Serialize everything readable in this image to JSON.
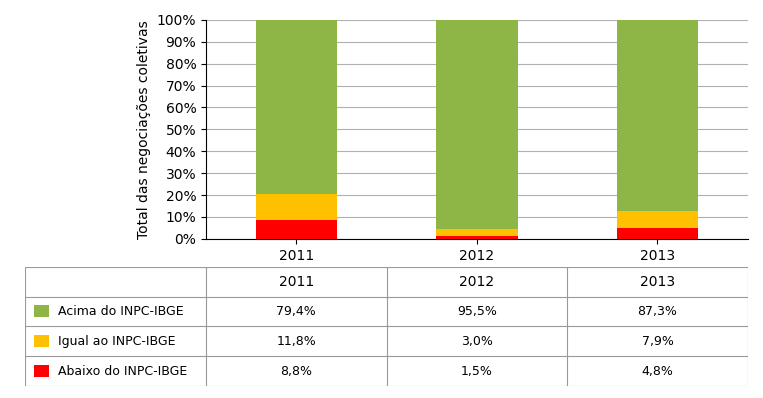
{
  "chart_data": {
    "type": "bar",
    "stacked": true,
    "ylabel": "Total das negociações coletivas",
    "categories": [
      "2011",
      "2012",
      "2013"
    ],
    "series": [
      {
        "name": "Abaixo do INPC-IBGE",
        "color": "#ff0000",
        "values": [
          8.8,
          1.5,
          4.8
        ],
        "value_labels": [
          "8,8%",
          "1,5%",
          "4,8%"
        ]
      },
      {
        "name": "Igual ao INPC-IBGE",
        "color": "#ffc000",
        "values": [
          11.8,
          3.0,
          7.9
        ],
        "value_labels": [
          "11,8%",
          "3,0%",
          "7,9%"
        ]
      },
      {
        "name": "Acima do INPC-IBGE",
        "color": "#8db646",
        "values": [
          79.4,
          95.5,
          87.3
        ],
        "value_labels": [
          "79,4%",
          "95,5%",
          "87,3%"
        ]
      }
    ],
    "ylim": [
      0,
      100
    ],
    "yticks": [
      {
        "value": 0,
        "label": "0%"
      },
      {
        "value": 10,
        "label": "10%"
      },
      {
        "value": 20,
        "label": "20%"
      },
      {
        "value": 30,
        "label": "30%"
      },
      {
        "value": 40,
        "label": "40%"
      },
      {
        "value": 50,
        "label": "50%"
      },
      {
        "value": 60,
        "label": "60%"
      },
      {
        "value": 70,
        "label": "70%"
      },
      {
        "value": 80,
        "label": "80%"
      },
      {
        "value": 90,
        "label": "90%"
      },
      {
        "value": 100,
        "label": "100%"
      }
    ],
    "grid": true
  }
}
